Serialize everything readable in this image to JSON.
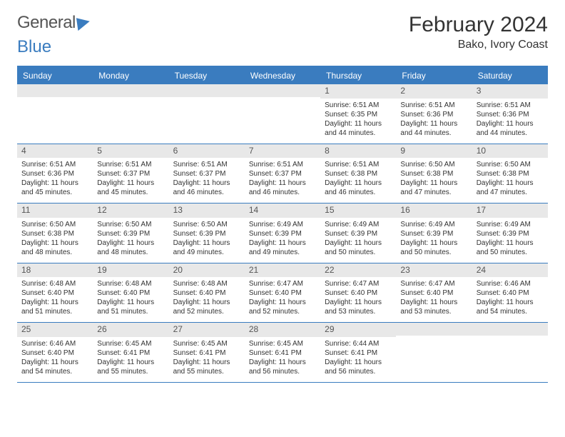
{
  "logo": {
    "part1": "General",
    "part2": "Blue"
  },
  "title": "February 2024",
  "location": "Bako, Ivory Coast",
  "colors": {
    "accent": "#3a7cbf",
    "header_bg": "#3a7cbf",
    "header_text": "#ffffff",
    "daynum_bg": "#e8e8e8",
    "border": "#3a7cbf",
    "text": "#333333",
    "background": "#ffffff"
  },
  "weekdays": [
    "Sunday",
    "Monday",
    "Tuesday",
    "Wednesday",
    "Thursday",
    "Friday",
    "Saturday"
  ],
  "weeks": [
    [
      {
        "n": "",
        "sr": "",
        "ss": "",
        "dl": ""
      },
      {
        "n": "",
        "sr": "",
        "ss": "",
        "dl": ""
      },
      {
        "n": "",
        "sr": "",
        "ss": "",
        "dl": ""
      },
      {
        "n": "",
        "sr": "",
        "ss": "",
        "dl": ""
      },
      {
        "n": "1",
        "sr": "Sunrise: 6:51 AM",
        "ss": "Sunset: 6:35 PM",
        "dl": "Daylight: 11 hours and 44 minutes."
      },
      {
        "n": "2",
        "sr": "Sunrise: 6:51 AM",
        "ss": "Sunset: 6:36 PM",
        "dl": "Daylight: 11 hours and 44 minutes."
      },
      {
        "n": "3",
        "sr": "Sunrise: 6:51 AM",
        "ss": "Sunset: 6:36 PM",
        "dl": "Daylight: 11 hours and 44 minutes."
      }
    ],
    [
      {
        "n": "4",
        "sr": "Sunrise: 6:51 AM",
        "ss": "Sunset: 6:36 PM",
        "dl": "Daylight: 11 hours and 45 minutes."
      },
      {
        "n": "5",
        "sr": "Sunrise: 6:51 AM",
        "ss": "Sunset: 6:37 PM",
        "dl": "Daylight: 11 hours and 45 minutes."
      },
      {
        "n": "6",
        "sr": "Sunrise: 6:51 AM",
        "ss": "Sunset: 6:37 PM",
        "dl": "Daylight: 11 hours and 46 minutes."
      },
      {
        "n": "7",
        "sr": "Sunrise: 6:51 AM",
        "ss": "Sunset: 6:37 PM",
        "dl": "Daylight: 11 hours and 46 minutes."
      },
      {
        "n": "8",
        "sr": "Sunrise: 6:51 AM",
        "ss": "Sunset: 6:38 PM",
        "dl": "Daylight: 11 hours and 46 minutes."
      },
      {
        "n": "9",
        "sr": "Sunrise: 6:50 AM",
        "ss": "Sunset: 6:38 PM",
        "dl": "Daylight: 11 hours and 47 minutes."
      },
      {
        "n": "10",
        "sr": "Sunrise: 6:50 AM",
        "ss": "Sunset: 6:38 PM",
        "dl": "Daylight: 11 hours and 47 minutes."
      }
    ],
    [
      {
        "n": "11",
        "sr": "Sunrise: 6:50 AM",
        "ss": "Sunset: 6:38 PM",
        "dl": "Daylight: 11 hours and 48 minutes."
      },
      {
        "n": "12",
        "sr": "Sunrise: 6:50 AM",
        "ss": "Sunset: 6:39 PM",
        "dl": "Daylight: 11 hours and 48 minutes."
      },
      {
        "n": "13",
        "sr": "Sunrise: 6:50 AM",
        "ss": "Sunset: 6:39 PM",
        "dl": "Daylight: 11 hours and 49 minutes."
      },
      {
        "n": "14",
        "sr": "Sunrise: 6:49 AM",
        "ss": "Sunset: 6:39 PM",
        "dl": "Daylight: 11 hours and 49 minutes."
      },
      {
        "n": "15",
        "sr": "Sunrise: 6:49 AM",
        "ss": "Sunset: 6:39 PM",
        "dl": "Daylight: 11 hours and 50 minutes."
      },
      {
        "n": "16",
        "sr": "Sunrise: 6:49 AM",
        "ss": "Sunset: 6:39 PM",
        "dl": "Daylight: 11 hours and 50 minutes."
      },
      {
        "n": "17",
        "sr": "Sunrise: 6:49 AM",
        "ss": "Sunset: 6:39 PM",
        "dl": "Daylight: 11 hours and 50 minutes."
      }
    ],
    [
      {
        "n": "18",
        "sr": "Sunrise: 6:48 AM",
        "ss": "Sunset: 6:40 PM",
        "dl": "Daylight: 11 hours and 51 minutes."
      },
      {
        "n": "19",
        "sr": "Sunrise: 6:48 AM",
        "ss": "Sunset: 6:40 PM",
        "dl": "Daylight: 11 hours and 51 minutes."
      },
      {
        "n": "20",
        "sr": "Sunrise: 6:48 AM",
        "ss": "Sunset: 6:40 PM",
        "dl": "Daylight: 11 hours and 52 minutes."
      },
      {
        "n": "21",
        "sr": "Sunrise: 6:47 AM",
        "ss": "Sunset: 6:40 PM",
        "dl": "Daylight: 11 hours and 52 minutes."
      },
      {
        "n": "22",
        "sr": "Sunrise: 6:47 AM",
        "ss": "Sunset: 6:40 PM",
        "dl": "Daylight: 11 hours and 53 minutes."
      },
      {
        "n": "23",
        "sr": "Sunrise: 6:47 AM",
        "ss": "Sunset: 6:40 PM",
        "dl": "Daylight: 11 hours and 53 minutes."
      },
      {
        "n": "24",
        "sr": "Sunrise: 6:46 AM",
        "ss": "Sunset: 6:40 PM",
        "dl": "Daylight: 11 hours and 54 minutes."
      }
    ],
    [
      {
        "n": "25",
        "sr": "Sunrise: 6:46 AM",
        "ss": "Sunset: 6:40 PM",
        "dl": "Daylight: 11 hours and 54 minutes."
      },
      {
        "n": "26",
        "sr": "Sunrise: 6:45 AM",
        "ss": "Sunset: 6:41 PM",
        "dl": "Daylight: 11 hours and 55 minutes."
      },
      {
        "n": "27",
        "sr": "Sunrise: 6:45 AM",
        "ss": "Sunset: 6:41 PM",
        "dl": "Daylight: 11 hours and 55 minutes."
      },
      {
        "n": "28",
        "sr": "Sunrise: 6:45 AM",
        "ss": "Sunset: 6:41 PM",
        "dl": "Daylight: 11 hours and 56 minutes."
      },
      {
        "n": "29",
        "sr": "Sunrise: 6:44 AM",
        "ss": "Sunset: 6:41 PM",
        "dl": "Daylight: 11 hours and 56 minutes."
      },
      {
        "n": "",
        "sr": "",
        "ss": "",
        "dl": ""
      },
      {
        "n": "",
        "sr": "",
        "ss": "",
        "dl": ""
      }
    ]
  ]
}
